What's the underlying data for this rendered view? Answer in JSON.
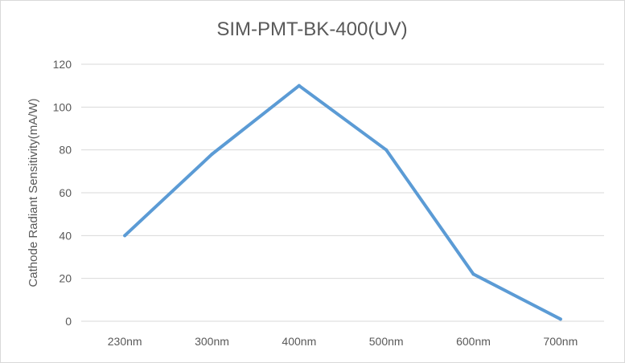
{
  "chart_data": {
    "type": "line",
    "title": "SIM-PMT-BK-400(UV)",
    "ylabel": "Cathode Radiant Sensitivity(mA/W)",
    "xlabel": "",
    "categories": [
      "230nm",
      "300nm",
      "400nm",
      "500nm",
      "600nm",
      "700nm"
    ],
    "series": [
      {
        "values": [
          40,
          78,
          110,
          80,
          22,
          1
        ],
        "color": "#5b9bd5"
      }
    ],
    "ylim": [
      0,
      120
    ],
    "yticks": [
      0,
      20,
      40,
      60,
      80,
      100,
      120
    ],
    "grid": true,
    "legend": "none"
  }
}
